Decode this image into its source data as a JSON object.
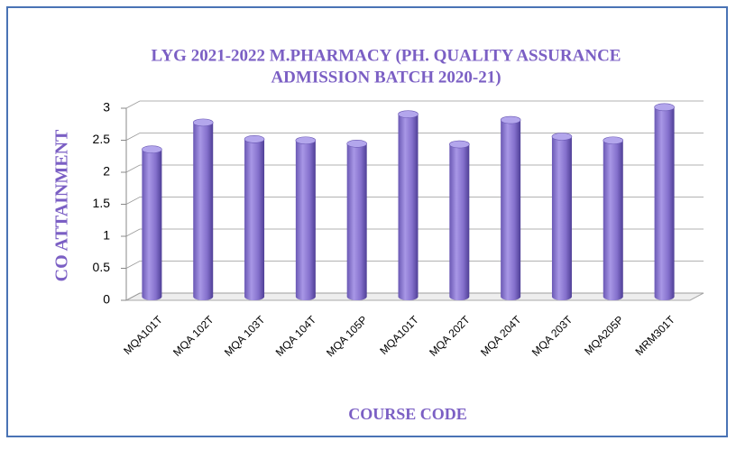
{
  "chart_data": {
    "type": "bar",
    "title": [
      "LYG 2021-2022 M.PHARMACY (PH. QUALITY ASSURANCE",
      "ADMISSION BATCH 2020-21)"
    ],
    "y_label": "CO ATTAINMENT",
    "x_label": "COURSE CODE",
    "categories": [
      "MQA101T",
      "MQA 102T",
      "MQA 103T",
      "MQA 104T",
      "MQA 105P",
      "MQA101T",
      "MQA 202T",
      "MQA 204T",
      "MQA 203T",
      "MQA205P",
      "MRM301T"
    ],
    "values": [
      2.3,
      2.72,
      2.46,
      2.44,
      2.39,
      2.85,
      2.38,
      2.76,
      2.5,
      2.44,
      2.96
    ],
    "color": "#8b78d0",
    "ylim": [
      0,
      3
    ],
    "yticks": [
      0,
      0.5,
      1,
      1.5,
      2,
      2.5,
      3
    ],
    "grid": true
  }
}
